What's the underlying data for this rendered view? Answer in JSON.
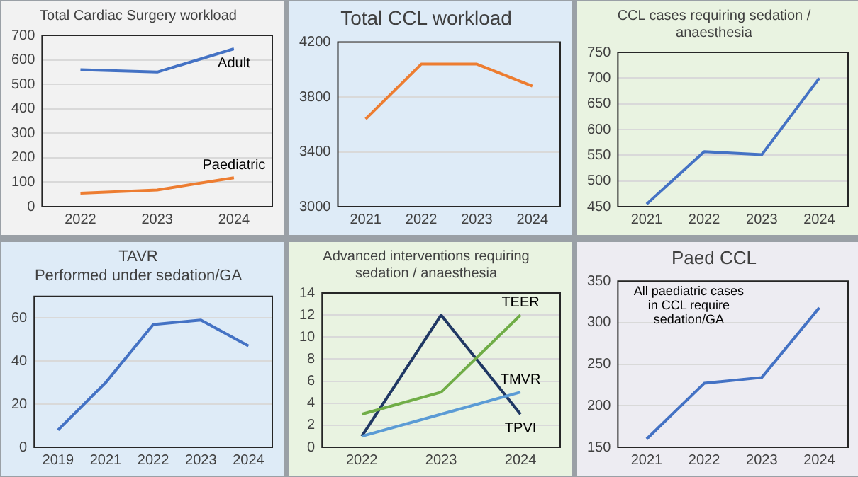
{
  "chart_data": [
    {
      "type": "line",
      "title": "Total Cardiac Surgery workload",
      "categories": [
        "2022",
        "2023",
        "2024"
      ],
      "series": [
        {
          "name": "Adult",
          "color": "#4472c4",
          "values": [
            560,
            550,
            645
          ]
        },
        {
          "name": "Paediatric",
          "color": "#ed7d31",
          "values": [
            55,
            68,
            118
          ]
        }
      ],
      "ylim": [
        0,
        700
      ],
      "yticks": [
        0,
        100,
        200,
        300,
        400,
        500,
        600,
        700
      ],
      "grid": "y",
      "legend": false,
      "marker": "none"
    },
    {
      "type": "line",
      "title": "Total CCL workload",
      "categories": [
        "2021",
        "2022",
        "2023",
        "2024"
      ],
      "series": [
        {
          "color": "#ed7d31",
          "values": [
            3640,
            4040,
            4040,
            3880
          ]
        }
      ],
      "ylim": [
        3000,
        4200
      ],
      "yticks": [
        3000,
        3400,
        3800,
        4200
      ],
      "grid": "y",
      "legend": false,
      "marker": "none"
    },
    {
      "type": "line",
      "title": "CCL cases requiring sedation / anaesthesia",
      "categories": [
        "2021",
        "2022",
        "2023",
        "2024"
      ],
      "series": [
        {
          "color": "#4472c4",
          "values": [
            455,
            557,
            551,
            700
          ]
        }
      ],
      "ylim": [
        450,
        750
      ],
      "yticks": [
        450,
        500,
        550,
        600,
        650,
        700,
        750
      ],
      "grid": "y",
      "legend": false,
      "marker": "none"
    },
    {
      "type": "line",
      "title": "TAVR\nPerformed under sedation/GA",
      "categories": [
        "2019",
        "2021",
        "2022",
        "2023",
        "2024"
      ],
      "series": [
        {
          "color": "#4472c4",
          "values": [
            8,
            30,
            57,
            59,
            47
          ]
        }
      ],
      "ylim": [
        0,
        70
      ],
      "yticks": [
        0,
        20,
        40,
        60
      ],
      "grid": "y",
      "legend": false,
      "marker": "none"
    },
    {
      "type": "line",
      "title": "Advanced interventions requiring sedation / anaesthesia",
      "categories": [
        "2022",
        "2023",
        "2024"
      ],
      "series": [
        {
          "name": "TEER",
          "color": "#70ad47",
          "values": [
            3,
            5,
            12
          ]
        },
        {
          "name": "TMVR",
          "color": "#5b9bd5",
          "values": [
            1,
            3,
            5
          ]
        },
        {
          "name": "TPVI",
          "color": "#203864",
          "values": [
            1,
            12,
            3
          ]
        }
      ],
      "ylim": [
        0,
        14
      ],
      "yticks": [
        0,
        2,
        4,
        6,
        8,
        10,
        12,
        14
      ],
      "grid": "y",
      "legend": false,
      "marker": "none"
    },
    {
      "type": "line",
      "title": "Paed CCL",
      "categories": [
        "2021",
        "2022",
        "2023",
        "2024"
      ],
      "series": [
        {
          "color": "#4472c4",
          "values": [
            160,
            227,
            234,
            318
          ]
        }
      ],
      "ylim": [
        150,
        350
      ],
      "yticks": [
        150,
        200,
        250,
        300,
        350
      ],
      "grid": "y",
      "legend": false,
      "marker": "none",
      "annotations": [
        "All paediatric cases in CCL require sedation/GA"
      ]
    }
  ]
}
